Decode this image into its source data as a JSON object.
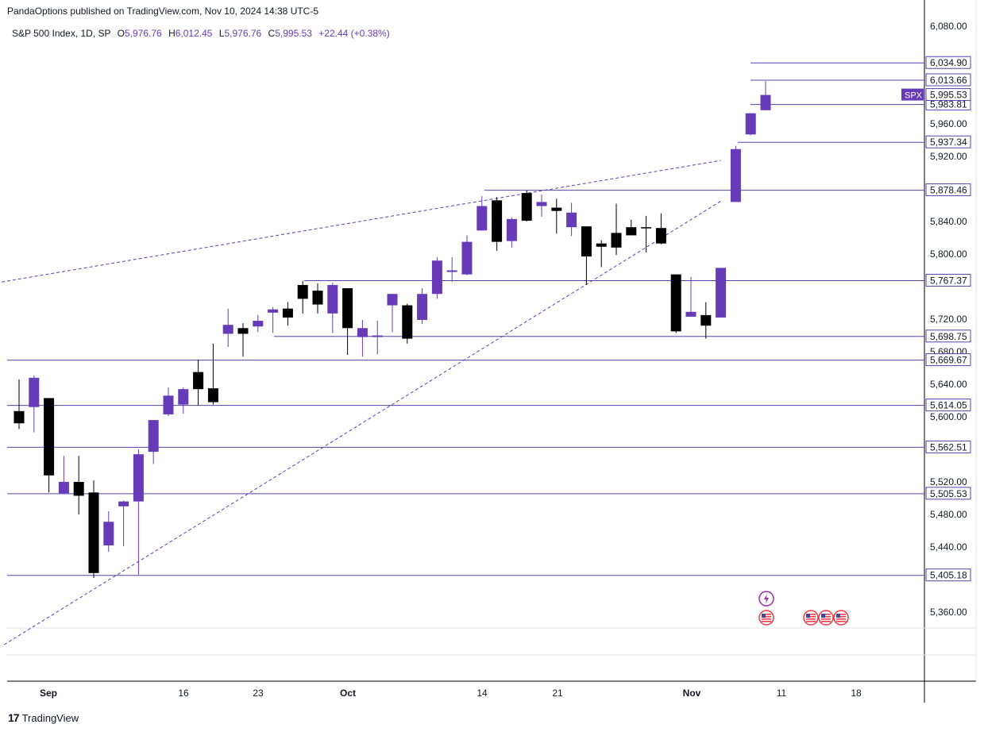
{
  "header": {
    "published": "PandaOptions published on TradingView.com, Nov 10, 2024 14:38 UTC-5"
  },
  "legend": {
    "symbol": "S&P 500 Index, 1D, SP",
    "o_label": "O",
    "o_value": "5,976.76",
    "h_label": "H",
    "h_value": "6,012.45",
    "l_label": "L",
    "l_value": "5,976.76",
    "c_label": "C",
    "c_value": "5,995.53",
    "change": "+22.44 (+0.38%)"
  },
  "footer": {
    "brand": "TradingView",
    "brand_mark": "17"
  },
  "colors": {
    "up": "#673ab7",
    "down": "#000000",
    "level_line": "#5b3fb0",
    "trend_line": "#5b3fb0",
    "axis_text": "#131722",
    "label_bg": "#ffffff",
    "spx_bg": "#673ab7",
    "event_icon": "#9c27b0",
    "us_flag_ring": "#f23645"
  },
  "chart_data": {
    "type": "candlestick",
    "symbol_badge": "SPX",
    "ylim": [
      5320,
      6100
    ],
    "y_ticks": [
      "5,360.00",
      "5,440.00",
      "5,480.00",
      "5,520.00",
      "5,600.00",
      "5,640.00",
      "5,680.00",
      "5,720.00",
      "5,800.00",
      "5,840.00",
      "5,920.00",
      "5,960.00",
      "6,080.00"
    ],
    "x_ticks": [
      {
        "label": "Sep",
        "date": "2024-09-01"
      },
      {
        "label": "16",
        "date": "2024-09-16"
      },
      {
        "label": "23",
        "date": "2024-09-23"
      },
      {
        "label": "Oct",
        "date": "2024-10-01"
      },
      {
        "label": "14",
        "date": "2024-10-14"
      },
      {
        "label": "21",
        "date": "2024-10-21"
      },
      {
        "label": "Nov",
        "date": "2024-11-01"
      },
      {
        "label": "11",
        "date": "2024-11-11"
      },
      {
        "label": "18",
        "date": "2024-11-18"
      }
    ],
    "levels": [
      {
        "value": 6034.9,
        "label": "6,034.90"
      },
      {
        "value": 6013.66,
        "label": "6,013.66"
      },
      {
        "value": 5983.81,
        "label": "5,983.81"
      },
      {
        "value": 5937.34,
        "label": "5,937.34"
      },
      {
        "value": 5878.46,
        "label": "5,878.46"
      },
      {
        "value": 5767.37,
        "label": "5,767.37"
      },
      {
        "value": 5698.75,
        "label": "5,698.75"
      },
      {
        "value": 5669.67,
        "label": "5,669.67"
      },
      {
        "value": 5614.05,
        "label": "5,614.05"
      },
      {
        "value": 5562.51,
        "label": "5,562.51"
      },
      {
        "value": 5505.53,
        "label": "5,505.53"
      },
      {
        "value": 5405.18,
        "label": "5,405.18"
      }
    ],
    "price_label": {
      "value": 5995.53,
      "label": "5,995.53"
    },
    "trendlines": [
      {
        "from": {
          "date": "2024-08-26",
          "value": 5760
        },
        "to": {
          "date": "2024-11-05",
          "value": 5915
        }
      },
      {
        "from": {
          "date": "2024-08-28",
          "value": 5320
        },
        "to": {
          "date": "2024-11-05",
          "value": 5865
        }
      }
    ],
    "candles": [
      {
        "date": "2024-08-29",
        "o": 5607,
        "h": 5646,
        "l": 5585,
        "c": 5592
      },
      {
        "date": "2024-08-30",
        "o": 5612,
        "h": 5651,
        "l": 5581,
        "c": 5648
      },
      {
        "date": "2024-09-03",
        "o": 5623,
        "h": 5623,
        "l": 5507,
        "c": 5528
      },
      {
        "date": "2024-09-04",
        "o": 5506,
        "h": 5552,
        "l": 5505,
        "c": 5520
      },
      {
        "date": "2024-09-05",
        "o": 5520,
        "h": 5552,
        "l": 5480,
        "c": 5503
      },
      {
        "date": "2024-09-06",
        "o": 5507,
        "h": 5522,
        "l": 5402,
        "c": 5408
      },
      {
        "date": "2024-09-09",
        "o": 5442,
        "h": 5484,
        "l": 5434,
        "c": 5471
      },
      {
        "date": "2024-09-10",
        "o": 5490,
        "h": 5497,
        "l": 5441,
        "c": 5496
      },
      {
        "date": "2024-09-11",
        "o": 5496,
        "h": 5560,
        "l": 5406,
        "c": 5554
      },
      {
        "date": "2024-09-12",
        "o": 5557,
        "h": 5596,
        "l": 5542,
        "c": 5596
      },
      {
        "date": "2024-09-13",
        "o": 5603,
        "h": 5636,
        "l": 5601,
        "c": 5626
      },
      {
        "date": "2024-09-16",
        "o": 5615,
        "h": 5636,
        "l": 5604,
        "c": 5634
      },
      {
        "date": "2024-09-17",
        "o": 5655,
        "h": 5670,
        "l": 5614,
        "c": 5634
      },
      {
        "date": "2024-09-18",
        "o": 5635,
        "h": 5690,
        "l": 5615,
        "c": 5618
      },
      {
        "date": "2024-09-19",
        "o": 5702,
        "h": 5733,
        "l": 5686,
        "c": 5713
      },
      {
        "date": "2024-09-20",
        "o": 5709,
        "h": 5715,
        "l": 5674,
        "c": 5702
      },
      {
        "date": "2024-09-23",
        "o": 5711,
        "h": 5725,
        "l": 5704,
        "c": 5718
      },
      {
        "date": "2024-09-24",
        "o": 5728,
        "h": 5735,
        "l": 5703,
        "c": 5732
      },
      {
        "date": "2024-09-25",
        "o": 5733,
        "h": 5741,
        "l": 5712,
        "c": 5722
      },
      {
        "date": "2024-09-26",
        "o": 5762,
        "h": 5767,
        "l": 5727,
        "c": 5745
      },
      {
        "date": "2024-09-27",
        "o": 5755,
        "h": 5764,
        "l": 5727,
        "c": 5738
      },
      {
        "date": "2024-09-30",
        "o": 5727,
        "h": 5765,
        "l": 5703,
        "c": 5762
      },
      {
        "date": "2024-10-01",
        "o": 5758,
        "h": 5758,
        "l": 5676,
        "c": 5709
      },
      {
        "date": "2024-10-02",
        "o": 5698,
        "h": 5719,
        "l": 5674,
        "c": 5709
      },
      {
        "date": "2024-10-03",
        "o": 5698,
        "h": 5718,
        "l": 5677,
        "c": 5700
      },
      {
        "date": "2024-10-04",
        "o": 5737,
        "h": 5751,
        "l": 5704,
        "c": 5751
      },
      {
        "date": "2024-10-07",
        "o": 5737,
        "h": 5739,
        "l": 5690,
        "c": 5696
      },
      {
        "date": "2024-10-08",
        "o": 5719,
        "h": 5758,
        "l": 5714,
        "c": 5751
      },
      {
        "date": "2024-10-09",
        "o": 5751,
        "h": 5796,
        "l": 5745,
        "c": 5792
      },
      {
        "date": "2024-10-10",
        "o": 5778,
        "h": 5796,
        "l": 5766,
        "c": 5780
      },
      {
        "date": "2024-10-11",
        "o": 5775,
        "h": 5823,
        "l": 5774,
        "c": 5815
      },
      {
        "date": "2024-10-14",
        "o": 5829,
        "h": 5871,
        "l": 5829,
        "c": 5859
      },
      {
        "date": "2024-10-15",
        "o": 5866,
        "h": 5870,
        "l": 5804,
        "c": 5815
      },
      {
        "date": "2024-10-16",
        "o": 5816,
        "h": 5845,
        "l": 5808,
        "c": 5843
      },
      {
        "date": "2024-10-17",
        "o": 5875,
        "h": 5878,
        "l": 5840,
        "c": 5841
      },
      {
        "date": "2024-10-18",
        "o": 5859,
        "h": 5873,
        "l": 5846,
        "c": 5864
      },
      {
        "date": "2024-10-21",
        "o": 5857,
        "h": 5868,
        "l": 5825,
        "c": 5853
      },
      {
        "date": "2024-10-22",
        "o": 5833,
        "h": 5863,
        "l": 5822,
        "c": 5851
      },
      {
        "date": "2024-10-23",
        "o": 5834,
        "h": 5834,
        "l": 5762,
        "c": 5797
      },
      {
        "date": "2024-10-24",
        "o": 5813,
        "h": 5817,
        "l": 5784,
        "c": 5809
      },
      {
        "date": "2024-10-25",
        "o": 5826,
        "h": 5862,
        "l": 5799,
        "c": 5808
      },
      {
        "date": "2024-10-28",
        "o": 5833,
        "h": 5842,
        "l": 5823,
        "c": 5823
      },
      {
        "date": "2024-10-29",
        "o": 5833,
        "h": 5847,
        "l": 5802,
        "c": 5832
      },
      {
        "date": "2024-10-30",
        "o": 5832,
        "h": 5850,
        "l": 5812,
        "c": 5813
      },
      {
        "date": "2024-10-31",
        "o": 5775,
        "h": 5775,
        "l": 5703,
        "c": 5705
      },
      {
        "date": "2024-11-01",
        "o": 5723,
        "h": 5772,
        "l": 5723,
        "c": 5729
      },
      {
        "date": "2024-11-04",
        "o": 5725,
        "h": 5741,
        "l": 5696,
        "c": 5712
      },
      {
        "date": "2024-11-05",
        "o": 5722,
        "h": 5783,
        "l": 5722,
        "c": 5783
      },
      {
        "date": "2024-11-06",
        "o": 5864,
        "h": 5933,
        "l": 5864,
        "c": 5929
      },
      {
        "date": "2024-11-07",
        "o": 5947,
        "h": 5973,
        "l": 5946,
        "c": 5973
      },
      {
        "date": "2024-11-08",
        "o": 5976.76,
        "h": 6012.45,
        "l": 5976.76,
        "c": 5995.53
      }
    ],
    "event_icons": [
      {
        "type": "dividend-bolt",
        "date": "2024-11-08",
        "row": 1
      },
      {
        "type": "us-flag",
        "date": "2024-11-08",
        "row": 2
      },
      {
        "type": "us-flag",
        "date": "2024-11-13",
        "row": 2
      },
      {
        "type": "us-flag",
        "date": "2024-11-14",
        "row": 2
      },
      {
        "type": "us-flag",
        "date": "2024-11-15",
        "row": 2
      }
    ]
  }
}
